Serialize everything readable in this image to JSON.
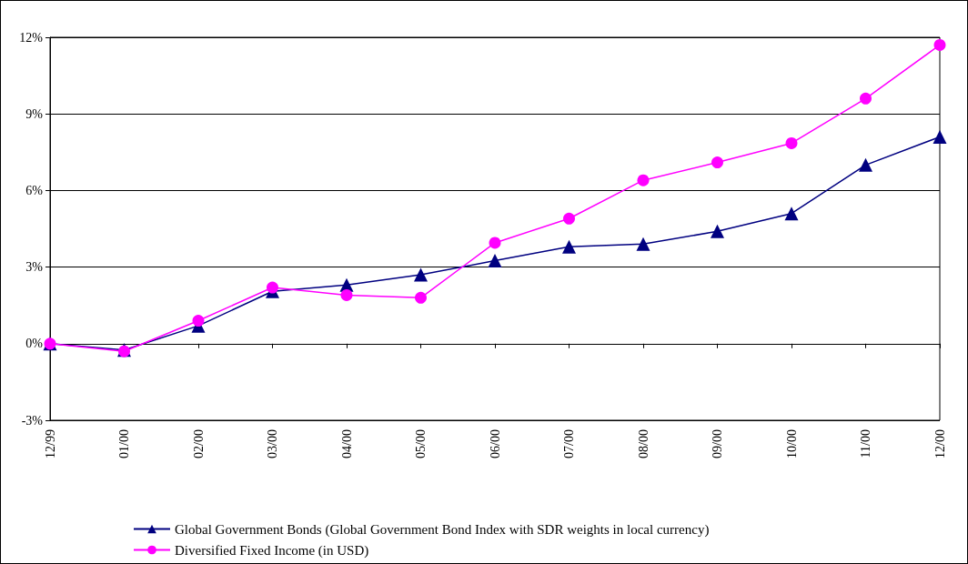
{
  "chart_data": {
    "type": "line",
    "categories": [
      "12/99",
      "01/00",
      "02/00",
      "03/00",
      "04/00",
      "05/00",
      "06/00",
      "07/00",
      "08/00",
      "09/00",
      "10/00",
      "11/00",
      "12/00"
    ],
    "series": [
      {
        "name": "Global Government Bonds (Global Government Bond Index with SDR weights in local currency)",
        "color": "#000080",
        "marker": "triangle",
        "values": [
          0,
          -0.25,
          0.7,
          2.05,
          2.3,
          2.7,
          3.25,
          3.8,
          3.9,
          4.4,
          5.1,
          7.0,
          8.1
        ]
      },
      {
        "name": "Diversified Fixed Income (in USD)",
        "color": "#ff00ff",
        "marker": "circle",
        "values": [
          0,
          -0.3,
          0.9,
          2.2,
          1.9,
          1.8,
          3.95,
          4.9,
          6.4,
          7.1,
          7.85,
          9.6,
          11.7
        ]
      }
    ],
    "ylim": [
      -3,
      12
    ],
    "yticks": [
      {
        "value": -3,
        "label": "-3%"
      },
      {
        "value": 0,
        "label": "0%"
      },
      {
        "value": 3,
        "label": "3%"
      },
      {
        "value": 6,
        "label": "6%"
      },
      {
        "value": 9,
        "label": "9%"
      },
      {
        "value": 12,
        "label": "12%"
      }
    ],
    "grid": "y",
    "legend": "bottom",
    "line_style": "solid"
  }
}
